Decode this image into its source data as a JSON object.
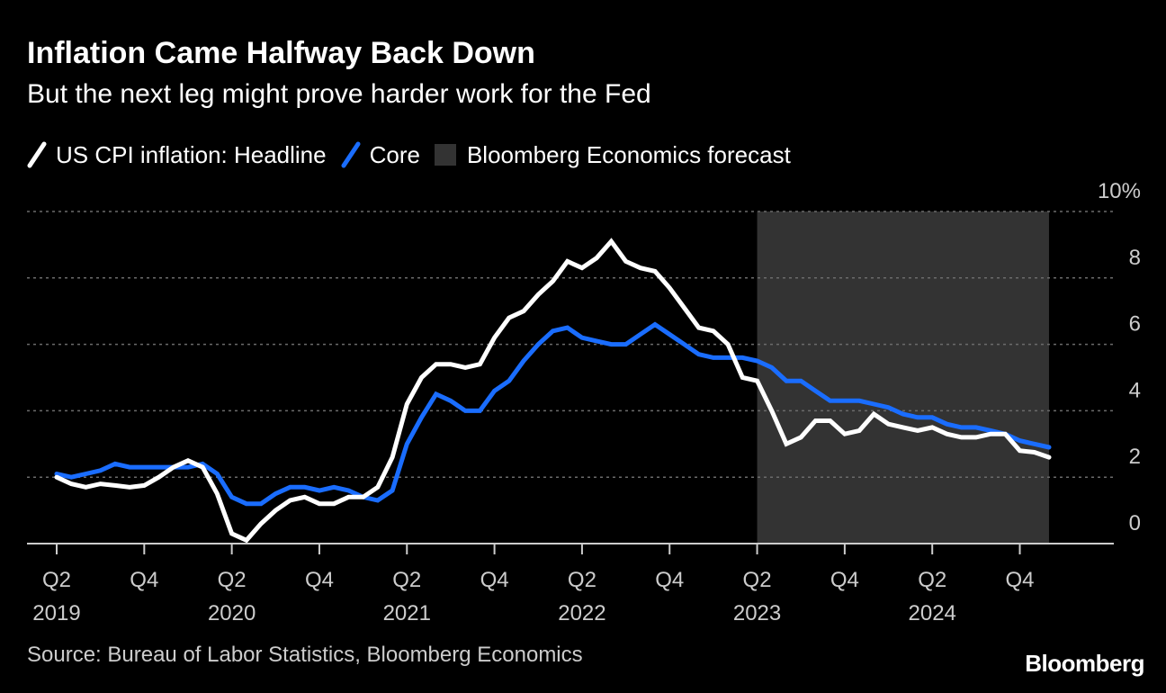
{
  "header": {
    "title": "Inflation Came Halfway Back Down",
    "subtitle": "But the next leg might prove harder work for the Fed"
  },
  "legend": {
    "headline_label": "US CPI inflation: Headline",
    "core_label": "Core",
    "forecast_label": "Bloomberg Economics forecast"
  },
  "footer": {
    "source": "Source: Bureau of Labor Statistics, Bloomberg Economics",
    "brand": "Bloomberg"
  },
  "colors": {
    "background": "#000000",
    "headline": "#ffffff",
    "core": "#1a6dff",
    "forecast_shade": "#333333",
    "grid": "#6b6b6b",
    "axis": "#cccccc"
  },
  "chart_data": {
    "type": "line",
    "title": "Inflation Came Halfway Back Down",
    "subtitle": "But the next leg might prove harder work for the Fed",
    "xlabel": "",
    "ylabel": "%",
    "ylim": [
      0,
      10
    ],
    "y_ticks": [
      {
        "value": 10,
        "label": "10%"
      },
      {
        "value": 8,
        "label": "8"
      },
      {
        "value": 6,
        "label": "6"
      },
      {
        "value": 4,
        "label": "4"
      },
      {
        "value": 2,
        "label": "2"
      },
      {
        "value": 0,
        "label": "0"
      }
    ],
    "x_start": "2019-04",
    "x_ticks": [
      {
        "month_index": 0,
        "quarter": "Q2",
        "year": "2019"
      },
      {
        "month_index": 6,
        "quarter": "Q4",
        "year": ""
      },
      {
        "month_index": 12,
        "quarter": "Q2",
        "year": "2020"
      },
      {
        "month_index": 18,
        "quarter": "Q4",
        "year": ""
      },
      {
        "month_index": 24,
        "quarter": "Q2",
        "year": "2021"
      },
      {
        "month_index": 30,
        "quarter": "Q4",
        "year": ""
      },
      {
        "month_index": 36,
        "quarter": "Q2",
        "year": "2022"
      },
      {
        "month_index": 42,
        "quarter": "Q4",
        "year": ""
      },
      {
        "month_index": 48,
        "quarter": "Q2",
        "year": "2023"
      },
      {
        "month_index": 54,
        "quarter": "Q4",
        "year": ""
      },
      {
        "month_index": 60,
        "quarter": "Q2",
        "year": "2024"
      },
      {
        "month_index": 66,
        "quarter": "Q4",
        "year": ""
      }
    ],
    "forecast_range": {
      "start_month_index": 48,
      "end_month_index": 68
    },
    "grid": true,
    "series": [
      {
        "name": "US CPI inflation: Headline",
        "values": [
          2.0,
          1.8,
          1.7,
          1.8,
          1.75,
          1.7,
          1.75,
          2.0,
          2.3,
          2.5,
          2.3,
          1.5,
          0.3,
          0.1,
          0.6,
          1.0,
          1.3,
          1.4,
          1.2,
          1.2,
          1.4,
          1.4,
          1.7,
          2.6,
          4.2,
          5.0,
          5.4,
          5.4,
          5.3,
          5.4,
          6.2,
          6.8,
          7.0,
          7.5,
          7.9,
          8.5,
          8.3,
          8.6,
          9.1,
          8.5,
          8.3,
          8.2,
          7.7,
          7.1,
          6.5,
          6.4,
          6.0,
          5.0,
          4.9,
          4.0,
          3.0,
          3.2,
          3.7,
          3.7,
          3.3,
          3.4,
          3.9,
          3.6,
          3.5,
          3.4,
          3.5,
          3.3,
          3.2,
          3.2,
          3.3,
          3.3,
          2.8,
          2.75,
          2.6
        ]
      },
      {
        "name": "Core",
        "values": [
          2.1,
          2.0,
          2.1,
          2.2,
          2.4,
          2.3,
          2.3,
          2.3,
          2.3,
          2.3,
          2.4,
          2.1,
          1.4,
          1.2,
          1.2,
          1.5,
          1.7,
          1.7,
          1.6,
          1.7,
          1.6,
          1.4,
          1.3,
          1.6,
          3.0,
          3.8,
          4.5,
          4.3,
          4.0,
          4.0,
          4.6,
          4.9,
          5.5,
          6.0,
          6.4,
          6.5,
          6.2,
          6.1,
          6.0,
          6.0,
          6.3,
          6.6,
          6.3,
          6.0,
          5.7,
          5.6,
          5.6,
          5.6,
          5.5,
          5.3,
          4.9,
          4.9,
          4.6,
          4.3,
          4.3,
          4.3,
          4.2,
          4.1,
          3.9,
          3.8,
          3.8,
          3.6,
          3.5,
          3.5,
          3.4,
          3.3,
          3.1,
          3.0,
          2.9
        ]
      }
    ]
  }
}
